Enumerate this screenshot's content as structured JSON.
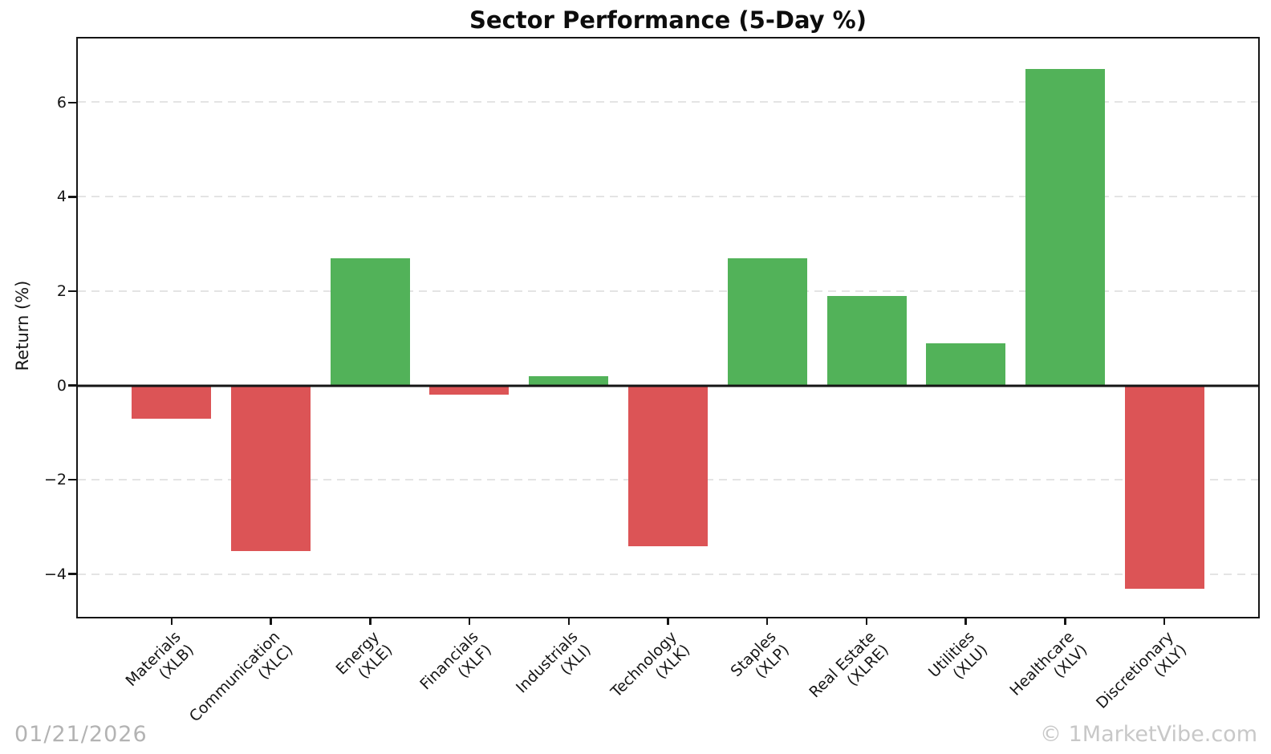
{
  "figure": {
    "date_watermark": "01/21/2026",
    "brand_watermark": "© 1MarketVibe.com"
  },
  "chart_data": {
    "type": "bar",
    "title": "Sector Performance (5-Day %)",
    "xlabel": "",
    "ylabel": "Return (%)",
    "categories": [
      "Materials (XLB)",
      "Communication (XLC)",
      "Energy (XLE)",
      "Financials (XLF)",
      "Industrials (XLI)",
      "Technology (XLK)",
      "Staples (XLP)",
      "Real Estate (XLRE)",
      "Utilities (XLU)",
      "Healthcare (XLV)",
      "Discretionary (XLY)"
    ],
    "tick_label_lines": [
      [
        "Materials",
        "(XLB)"
      ],
      [
        "Communication",
        "(XLC)"
      ],
      [
        "Energy",
        "(XLE)"
      ],
      [
        "Financials",
        "(XLF)"
      ],
      [
        "Industrials",
        "(XLI)"
      ],
      [
        "Technology",
        "(XLK)"
      ],
      [
        "Staples",
        "(XLP)"
      ],
      [
        "Real Estate",
        "(XLRE)"
      ],
      [
        "Utilities",
        "(XLU)"
      ],
      [
        "Healthcare",
        "(XLV)"
      ],
      [
        "Discretionary",
        "(XLY)"
      ]
    ],
    "tickers": [
      "XLB",
      "XLC",
      "XLE",
      "XLF",
      "XLI",
      "XLK",
      "XLP",
      "XLRE",
      "XLU",
      "XLV",
      "XLY"
    ],
    "values": [
      -0.7,
      -3.5,
      2.7,
      -0.2,
      0.2,
      -3.4,
      2.7,
      1.9,
      0.9,
      6.7,
      -4.3
    ],
    "ylim": [
      -4.9,
      7.35
    ],
    "yticks": [
      6,
      4,
      2,
      0,
      -2,
      -4
    ],
    "ytick_labels": [
      "6",
      "4",
      "2",
      "0",
      "−2",
      "−4"
    ],
    "grid": {
      "axis": "y",
      "style": "dashed",
      "color": "#e4e4e4"
    },
    "zero_line": true,
    "legend": false,
    "bar_width_fraction": 0.8,
    "positive_color": "#52b259",
    "negative_color": "#dc5456",
    "axis_color": "#151515"
  }
}
